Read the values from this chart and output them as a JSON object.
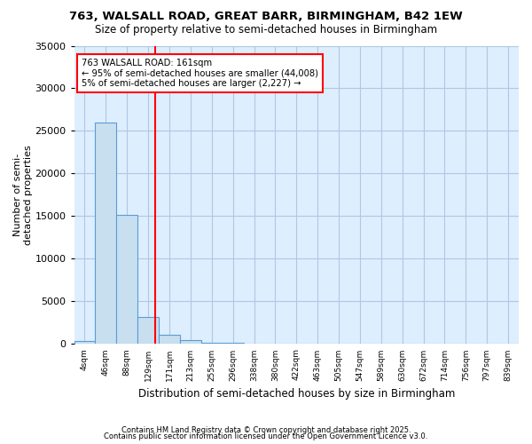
{
  "title1": "763, WALSALL ROAD, GREAT BARR, BIRMINGHAM, B42 1EW",
  "title2": "Size of property relative to semi-detached houses in Birmingham",
  "xlabel": "Distribution of semi-detached houses by size in Birmingham",
  "ylabel": "Number of semi-\ndetached properties",
  "bin_labels": [
    "4sqm",
    "46sqm",
    "88sqm",
    "129sqm",
    "171sqm",
    "213sqm",
    "255sqm",
    "296sqm",
    "338sqm",
    "380sqm",
    "422sqm",
    "463sqm",
    "505sqm",
    "547sqm",
    "589sqm",
    "630sqm",
    "672sqm",
    "714sqm",
    "756sqm",
    "797sqm",
    "839sqm"
  ],
  "bar_values": [
    400,
    26000,
    15200,
    3200,
    1100,
    500,
    200,
    100,
    0,
    0,
    0,
    0,
    0,
    0,
    0,
    0,
    0,
    0,
    0,
    0,
    0
  ],
  "bar_color": "#c8dff0",
  "bar_edge_color": "#5b9bd5",
  "background_color": "#ffffff",
  "plot_bg_color": "#ddeeff",
  "grid_color": "#b0c8e0",
  "vline_x": 3.85,
  "vline_color": "red",
  "annotation_title": "763 WALSALL ROAD: 161sqm",
  "annotation_line1": "← 95% of semi-detached houses are smaller (44,008)",
  "annotation_line2": "5% of semi-detached houses are larger (2,227) →",
  "ylim": [
    0,
    35000
  ],
  "yticks": [
    0,
    5000,
    10000,
    15000,
    20000,
    25000,
    30000,
    35000
  ],
  "footnote1": "Contains HM Land Registry data © Crown copyright and database right 2025.",
  "footnote2": "Contains public sector information licensed under the Open Government Licence v3.0."
}
